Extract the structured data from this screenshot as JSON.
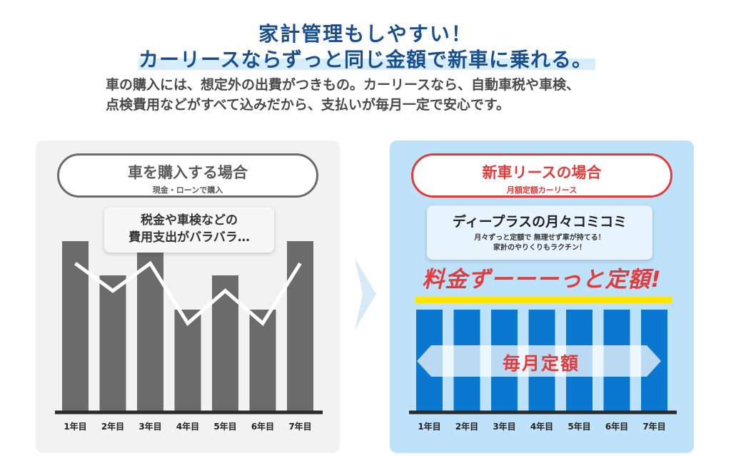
{
  "headline": {
    "line1": "家計管理もしやすい！",
    "line2": "カーリースならずっと同じ金額で新車に乗れる。"
  },
  "intro": {
    "line1": "車の購入には、想定外の出費がつきもの。カーリースなら、自動車税や車検、",
    "line2": "点検費用などがすべて込みだから、支払いが毎月一定で安心です。"
  },
  "left_panel": {
    "title": "車を購入する場合",
    "subtitle": "現金・ローンで購入",
    "bubble_line1": "税金や車検などの",
    "bubble_line2": "費用支出がバラバラ…"
  },
  "right_panel": {
    "title": "新車リースの場合",
    "subtitle": "月額定額カーリース",
    "bubble_title": "ディープラスの月々コミコミ",
    "bubble_line1": "月々ずっと定額で 無理せず車が持てる！",
    "bubble_line2": "家計のやりくりもラクチン！",
    "teiga_text": "料金ずーーーっと定額!",
    "arrow_label": "毎月定額"
  },
  "colors": {
    "headline": "#1a4f8f",
    "left_bar": "#6b6b6b",
    "right_bar": "#0a78d0",
    "accent_red": "#e23b3b",
    "highlight_yellow": "#ffe600"
  },
  "chart_data": [
    {
      "type": "bar",
      "categories": [
        "1年目",
        "2年目",
        "3年目",
        "4年目",
        "5年目",
        "6年目",
        "7年目"
      ],
      "values": [
        100,
        80,
        100,
        60,
        80,
        60,
        100
      ],
      "line_values": [
        87,
        71,
        87,
        52,
        71,
        52,
        87
      ],
      "ylim": [
        0,
        100
      ],
      "title": "",
      "xlabel": "",
      "ylabel": ""
    },
    {
      "type": "bar",
      "categories": [
        "1年目",
        "2年目",
        "3年目",
        "4年目",
        "5年目",
        "6年目",
        "7年目"
      ],
      "values": [
        100,
        100,
        100,
        100,
        100,
        100,
        100
      ],
      "ylim": [
        0,
        100
      ],
      "title": "",
      "xlabel": "",
      "ylabel": ""
    }
  ]
}
